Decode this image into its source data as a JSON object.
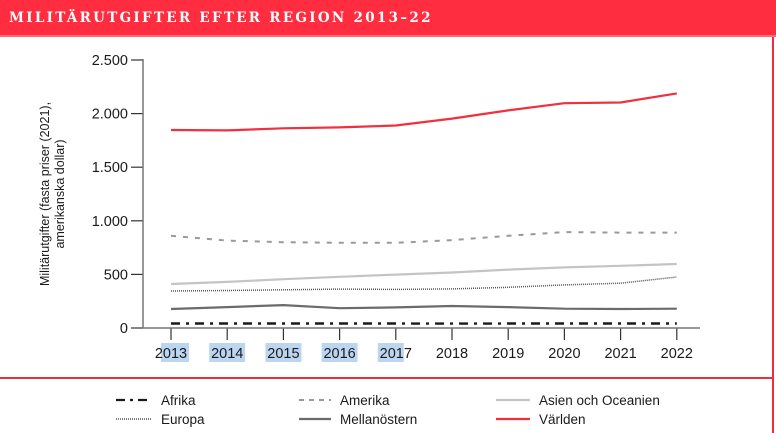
{
  "header": {
    "title": "MILITÄRUTGIFTER EFTER REGION 2013–22"
  },
  "colors": {
    "accent": "#ff2d3f",
    "world": "#f0303f",
    "america": "#999999",
    "asia": "#c4c4c4",
    "europe": "#555555",
    "middle_east": "#6b6b6b",
    "africa": "#1a1a1a",
    "selection": "#bcd6f2"
  },
  "chart_data": {
    "type": "line",
    "title": "MILITÄRUTGIFTER EFTER REGION 2013–22",
    "xlabel": "",
    "ylabel": "Militärutgifter (fasta priser (2021), amerikanska dollar)",
    "ylabel_lines": [
      "Militärutgifter (fasta priser (2021),",
      "amerikanska dollar)"
    ],
    "x": [
      "2013",
      "2014",
      "2015",
      "2016",
      "2017",
      "2018",
      "2019",
      "2020",
      "2021",
      "2022"
    ],
    "ylim": [
      0,
      2500
    ],
    "yticks": [
      0,
      500,
      1000,
      1500,
      2000,
      2500
    ],
    "ytick_labels": [
      "0",
      "500",
      "1.000",
      "1.500",
      "2.000",
      "2.500"
    ],
    "grid": false,
    "legend_position": "bottom",
    "selected_xtick_labels": [
      "2013",
      "2014",
      "2015",
      "2016",
      "2017"
    ],
    "series": [
      {
        "key": "africa",
        "name": "Afrika",
        "style": "dash-dot",
        "values": [
          42,
          42,
          42,
          42,
          42,
          41,
          42,
          42,
          42,
          42
        ]
      },
      {
        "key": "america",
        "name": "Amerika",
        "style": "dashed",
        "values": [
          860,
          815,
          800,
          795,
          795,
          820,
          860,
          895,
          890,
          890
        ]
      },
      {
        "key": "asia",
        "name": "Asien och Oceanien",
        "style": "solid",
        "values": [
          410,
          430,
          455,
          478,
          498,
          518,
          545,
          565,
          580,
          597
        ]
      },
      {
        "key": "europe",
        "name": "Europa",
        "style": "dotted",
        "values": [
          345,
          350,
          356,
          363,
          360,
          365,
          380,
          402,
          418,
          476
        ]
      },
      {
        "key": "middle_east",
        "name": "Mellanöstern",
        "style": "solid",
        "values": [
          177,
          195,
          214,
          185,
          192,
          205,
          195,
          180,
          177,
          180
        ]
      },
      {
        "key": "world",
        "name": "Världen",
        "style": "solid",
        "values": [
          1847,
          1843,
          1863,
          1871,
          1889,
          1953,
          2030,
          2097,
          2104,
          2188
        ]
      }
    ]
  },
  "legend": [
    {
      "key": "africa",
      "label": "Afrika"
    },
    {
      "key": "america",
      "label": "Amerika"
    },
    {
      "key": "asia",
      "label": "Asien och Oceanien"
    },
    {
      "key": "europe",
      "label": "Europa"
    },
    {
      "key": "middle_east",
      "label": "Mellanöstern"
    },
    {
      "key": "world",
      "label": "Världen"
    }
  ]
}
